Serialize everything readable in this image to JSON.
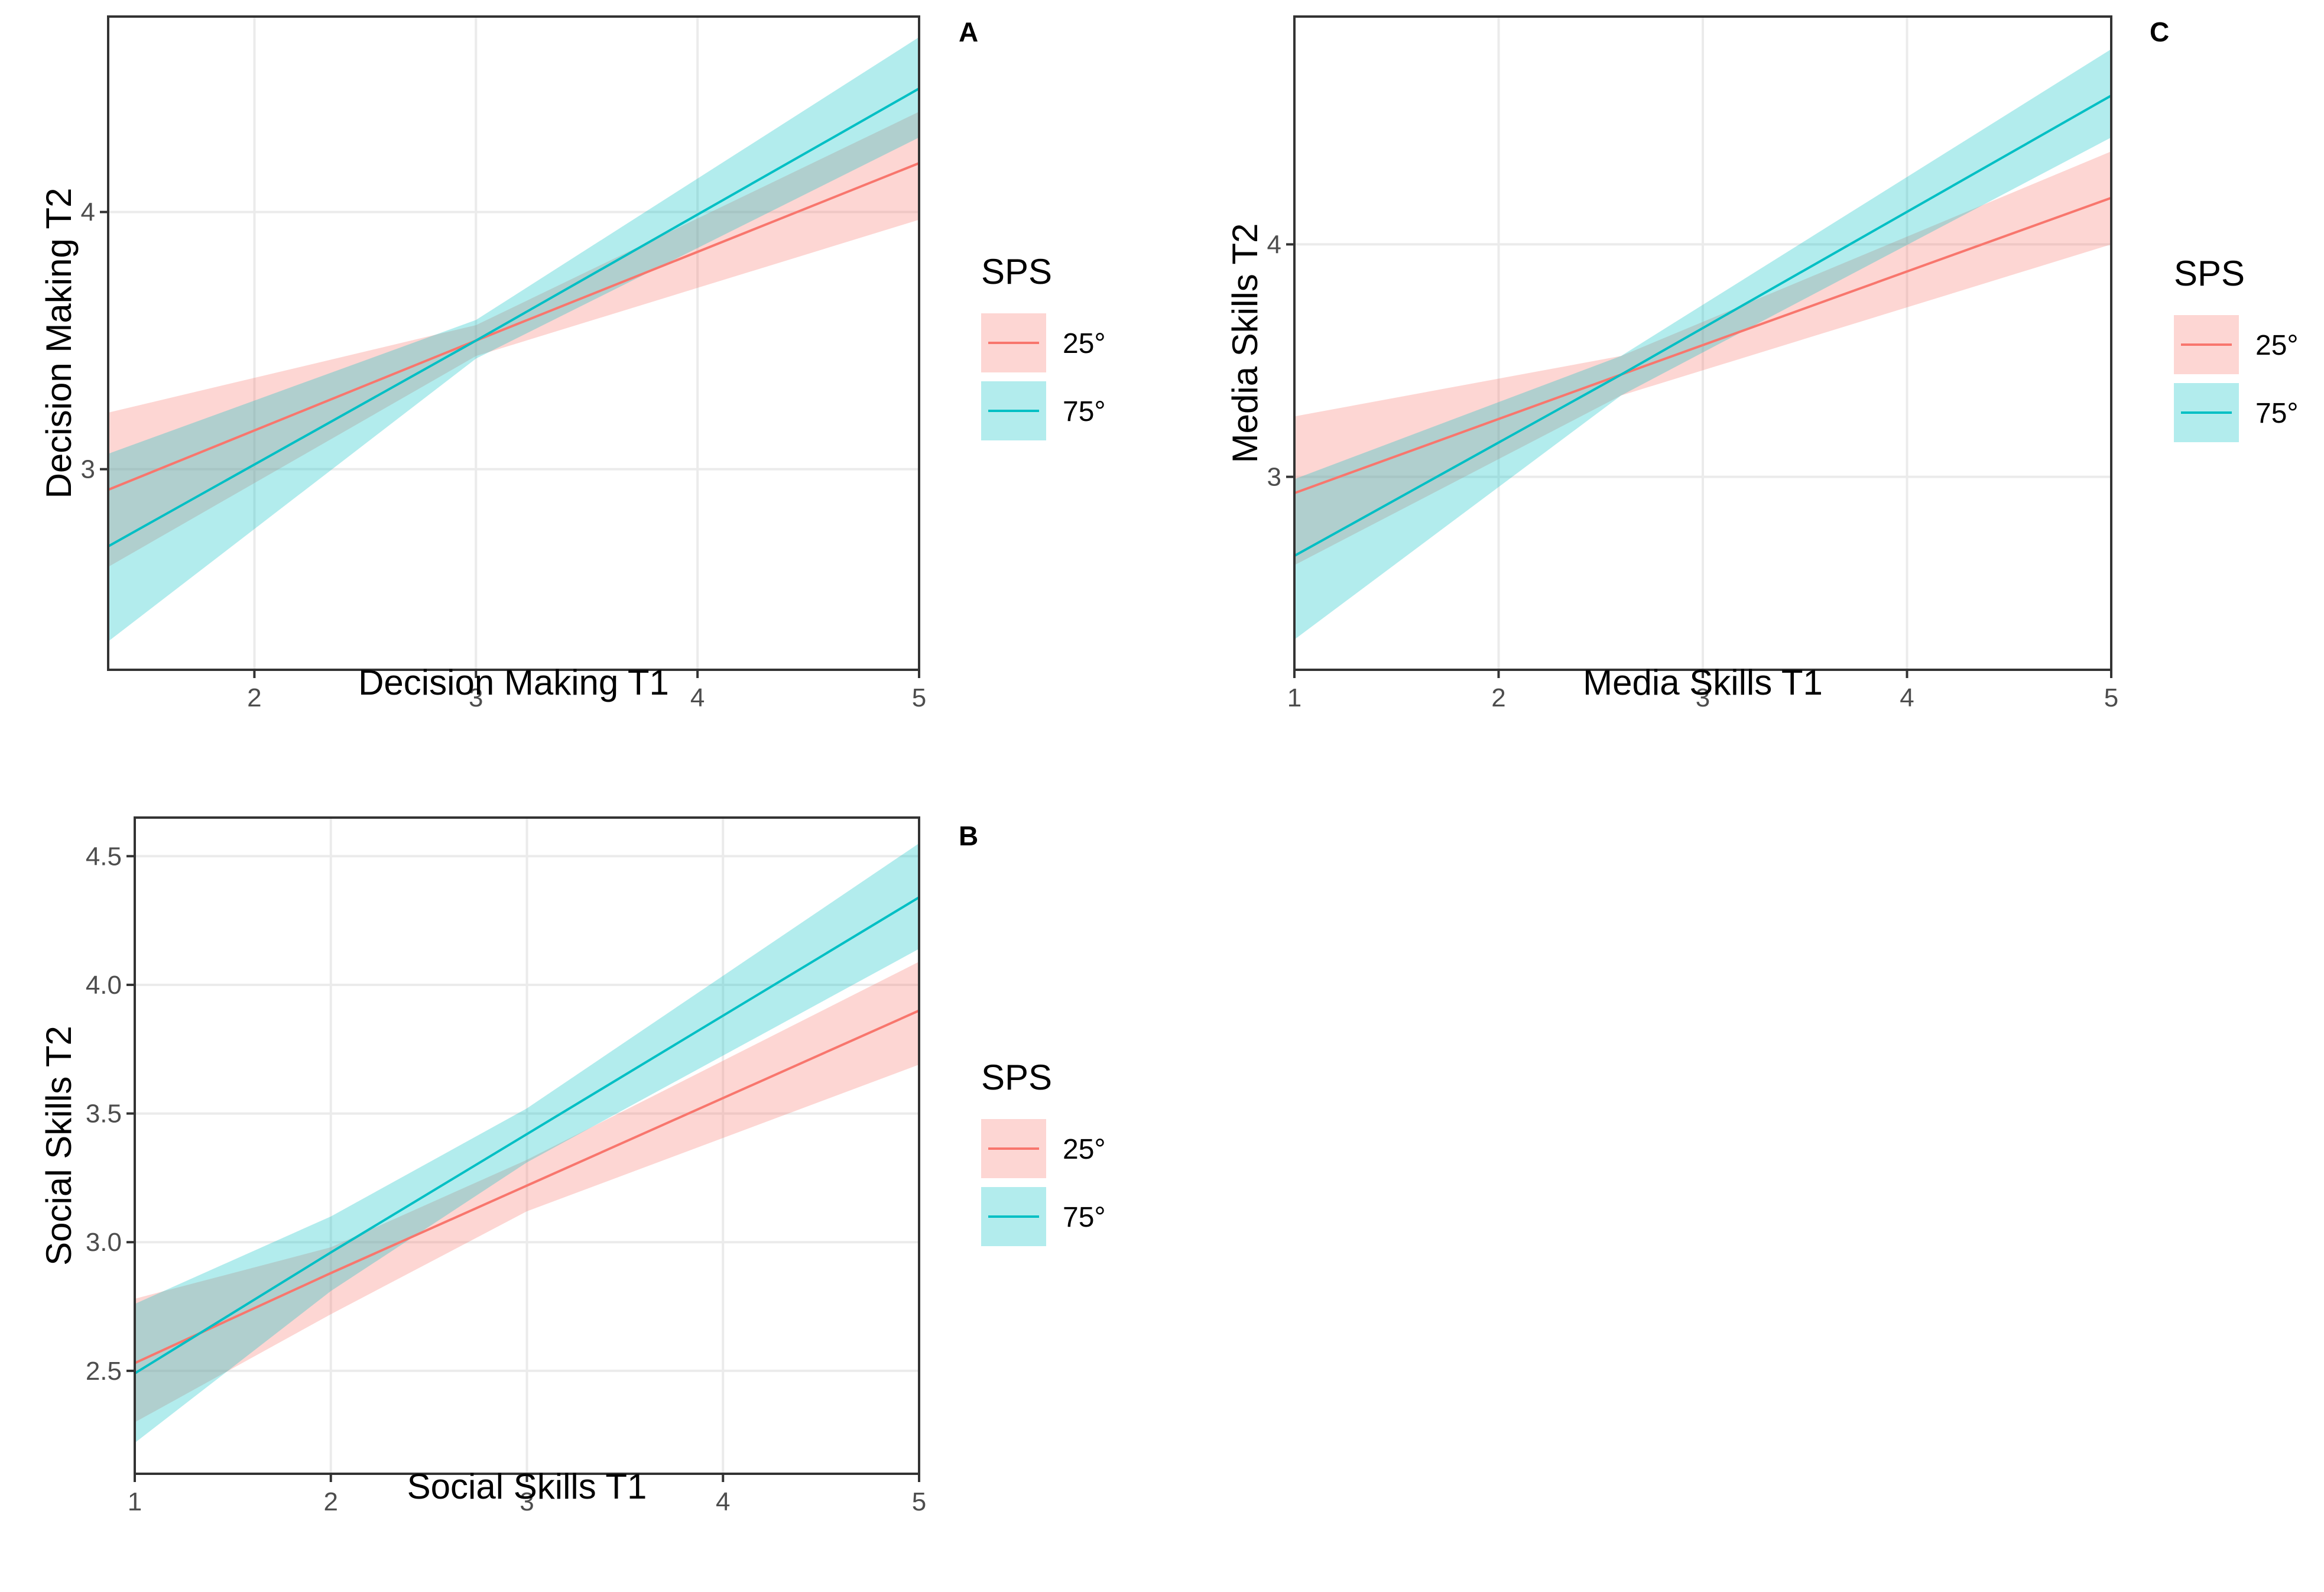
{
  "chart_data": [
    {
      "type": "line",
      "panel_tag": "A",
      "xlabel": "Decision Making T1",
      "ylabel": "Decision Making T2",
      "xlim": [
        1.34,
        5.0
      ],
      "ylim": [
        2.22,
        4.76
      ],
      "x_ticks": [
        "2",
        "3",
        "4",
        "5"
      ],
      "y_ticks": [
        "3",
        "4"
      ],
      "legend_title": "SPS",
      "series": [
        {
          "name": "25°",
          "color": "#F8766D",
          "x": [
            1.34,
            3.0,
            5.0
          ],
          "y": [
            2.92,
            3.5,
            4.19
          ],
          "lower": [
            2.62,
            3.44,
            3.97
          ],
          "upper": [
            3.22,
            3.56,
            4.39
          ]
        },
        {
          "name": "75°",
          "color": "#00BFC4",
          "x": [
            1.34,
            3.0,
            5.0
          ],
          "y": [
            2.7,
            3.5,
            4.48
          ],
          "lower": [
            2.33,
            3.43,
            4.29
          ],
          "upper": [
            3.06,
            3.58,
            4.68
          ]
        }
      ]
    },
    {
      "type": "line",
      "panel_tag": "C",
      "xlabel": "Media Skills T1",
      "ylabel": "Media Skills T2",
      "xlim": [
        1.0,
        5.0
      ],
      "ylim": [
        2.17,
        4.98
      ],
      "x_ticks": [
        "1",
        "2",
        "3",
        "4",
        "5"
      ],
      "y_ticks": [
        "3",
        "4"
      ],
      "legend_title": "SPS",
      "series": [
        {
          "name": "25°",
          "color": "#F8766D",
          "x": [
            1.0,
            2.6,
            5.0
          ],
          "y": [
            2.93,
            3.44,
            4.2
          ],
          "lower": [
            2.62,
            3.35,
            4.0
          ],
          "upper": [
            3.26,
            3.52,
            4.4
          ]
        },
        {
          "name": "75°",
          "color": "#00BFC4",
          "x": [
            1.0,
            2.6,
            5.0
          ],
          "y": [
            2.66,
            3.44,
            4.64
          ],
          "lower": [
            2.3,
            3.35,
            4.46
          ],
          "upper": [
            2.99,
            3.52,
            4.84
          ]
        }
      ]
    },
    {
      "type": "line",
      "panel_tag": "B",
      "xlabel": "Social Skills T1",
      "ylabel": "Social Skills T2",
      "xlim": [
        1.0,
        5.0
      ],
      "ylim": [
        2.1,
        4.65
      ],
      "x_ticks": [
        "1",
        "2",
        "3",
        "4",
        "5"
      ],
      "y_ticks": [
        "2.5",
        "3.0",
        "3.5",
        "4.0",
        "4.5"
      ],
      "legend_title": "SPS",
      "series": [
        {
          "name": "25°",
          "color": "#F8766D",
          "x": [
            1.0,
            2.0,
            3.0,
            5.0
          ],
          "y": [
            2.53,
            2.88,
            3.22,
            3.9
          ],
          "lower": [
            2.3,
            2.72,
            3.12,
            3.69
          ],
          "upper": [
            2.78,
            2.98,
            3.32,
            4.09
          ]
        },
        {
          "name": "75°",
          "color": "#00BFC4",
          "x": [
            1.0,
            2.0,
            3.0,
            5.0
          ],
          "y": [
            2.49,
            2.96,
            3.42,
            4.34
          ],
          "lower": [
            2.22,
            2.81,
            3.31,
            4.14
          ],
          "upper": [
            2.76,
            3.1,
            3.52,
            4.55
          ]
        }
      ]
    }
  ]
}
